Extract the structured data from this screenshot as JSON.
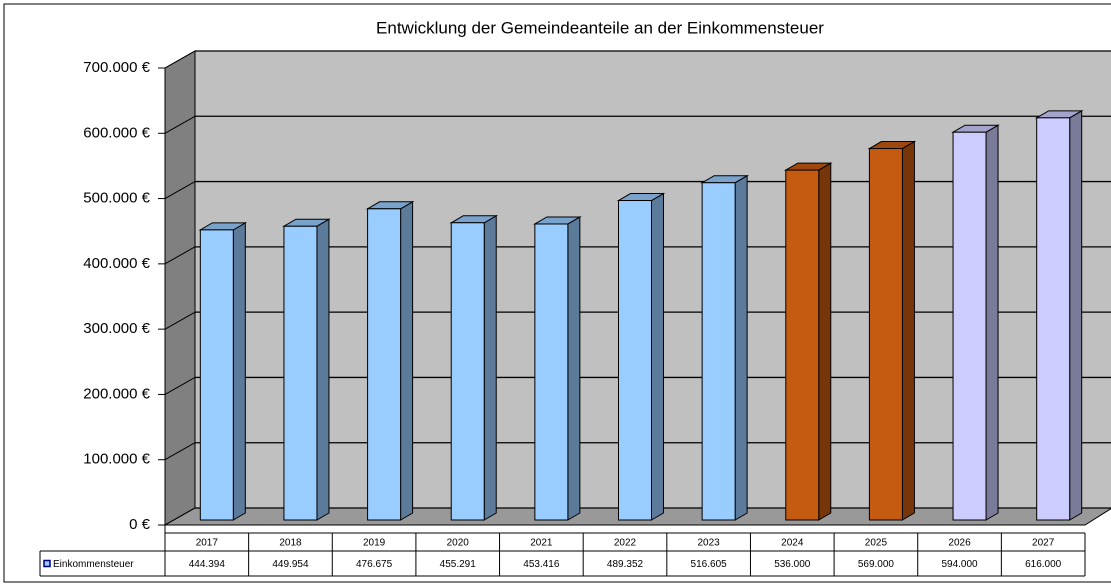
{
  "chart_data": {
    "type": "bar3d",
    "title": "Entwicklung der Gemeindeanteile an der Einkommensteuer",
    "categories": [
      "2017",
      "2018",
      "2019",
      "2020",
      "2021",
      "2022",
      "2023",
      "2024",
      "2025",
      "2026",
      "2027"
    ],
    "series": [
      {
        "name": "Einkommensteuer",
        "color": "#99ccff",
        "values": [
          444394,
          449954,
          476675,
          455291,
          453416,
          489352,
          516605,
          536000,
          569000,
          594000,
          616000
        ],
        "value_labels": [
          "444.394",
          "449.954",
          "476.675",
          "455.291",
          "453.416",
          "489.352",
          "516.605",
          "536.000",
          "569.000",
          "594.000",
          "616.000"
        ],
        "colors": [
          "#99ccff",
          "#99ccff",
          "#99ccff",
          "#99ccff",
          "#99ccff",
          "#99ccff",
          "#99ccff",
          "#c55a11",
          "#c55a11",
          "#ccccff",
          "#ccccff"
        ]
      }
    ],
    "ylim": [
      0,
      700000
    ],
    "yticks": [
      {
        "value": 0,
        "label": "0 €"
      },
      {
        "value": 100000,
        "label": "100.000 €"
      },
      {
        "value": 200000,
        "label": "200.000 €"
      },
      {
        "value": 300000,
        "label": "300.000 €"
      },
      {
        "value": 400000,
        "label": "400.000 €"
      },
      {
        "value": 500000,
        "label": "500.000 €"
      },
      {
        "value": 600000,
        "label": "600.000 €"
      },
      {
        "value": 700000,
        "label": "700.000 €"
      }
    ],
    "grid": true
  }
}
